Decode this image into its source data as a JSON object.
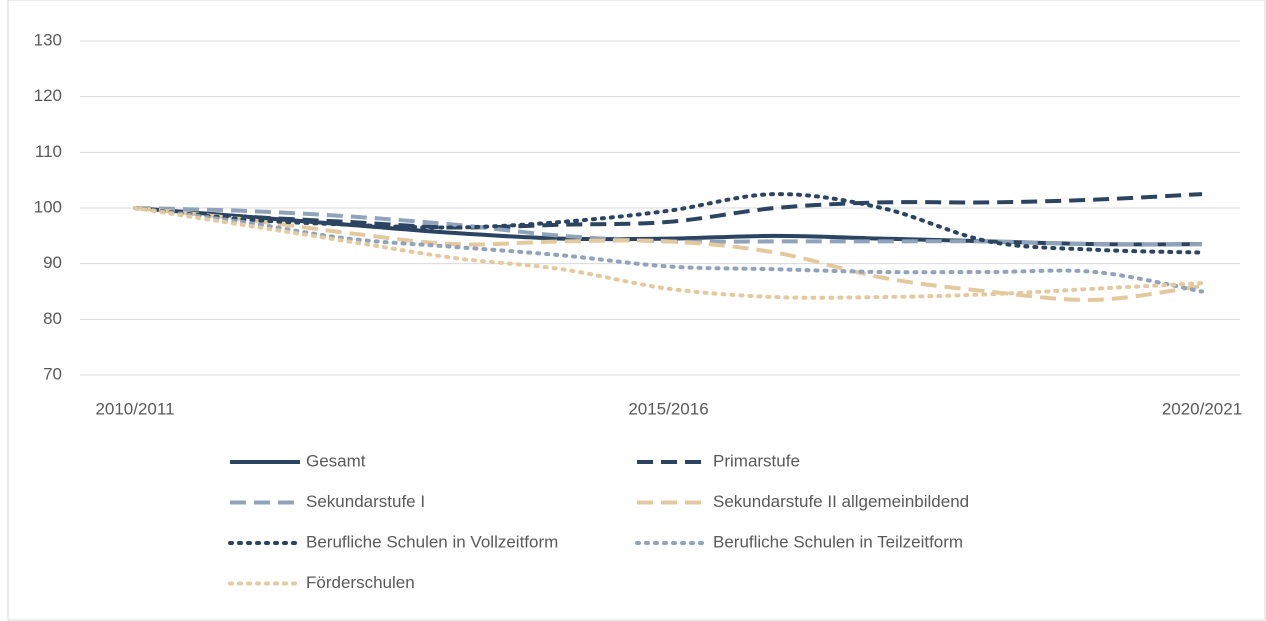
{
  "chart_data": {
    "type": "line",
    "categories": [
      "2010/2011",
      null,
      null,
      null,
      null,
      "2015/2016",
      null,
      null,
      null,
      null,
      "2020/2021"
    ],
    "ylim": [
      70,
      130
    ],
    "yticks": [
      70,
      80,
      90,
      100,
      110,
      120,
      130
    ],
    "grid": true,
    "series": [
      {
        "name": "Gesamt",
        "color": "#2b4462",
        "line_style": "solid",
        "values": [
          100,
          98.5,
          97,
          95.5,
          94.5,
          94.5,
          95,
          94.5,
          94,
          93.5,
          93.5
        ]
      },
      {
        "name": "Primarstufe",
        "color": "#2b4462",
        "line_style": "dashed",
        "values": [
          100,
          98.5,
          97.5,
          96.5,
          97,
          97.5,
          100,
          101,
          101,
          101.5,
          102.5
        ]
      },
      {
        "name": "Sekundarstufe I",
        "color": "#8fa3bb",
        "line_style": "dashed",
        "values": [
          100,
          99.5,
          98.5,
          97,
          95,
          94,
          94,
          94,
          94,
          93.5,
          93.5
        ]
      },
      {
        "name": "Sekundarstufe II allgemeinbildend",
        "color": "#e4c99f",
        "line_style": "dashed",
        "values": [
          100,
          98,
          95.5,
          93.5,
          94,
          94,
          92,
          87.5,
          85,
          83.5,
          86
        ]
      },
      {
        "name": "Berufliche Schulen in Vollzeitform",
        "color": "#2b4462",
        "line_style": "dotted",
        "values": [
          100,
          98,
          97,
          96.5,
          97.5,
          99.5,
          102.5,
          100,
          94,
          92.5,
          92
        ]
      },
      {
        "name": "Berufliche Schulen in Teilzeitform",
        "color": "#8fa3bb",
        "line_style": "dotted",
        "values": [
          100,
          97.5,
          94.5,
          93,
          91.5,
          89.5,
          89,
          88.5,
          88.5,
          88.5,
          85
        ]
      },
      {
        "name": "Förderschulen",
        "color": "#e4c99f",
        "line_style": "dotted",
        "values": [
          100,
          97,
          94,
          91,
          89,
          85.5,
          84,
          84,
          84.5,
          85.5,
          86.5
        ]
      }
    ]
  }
}
